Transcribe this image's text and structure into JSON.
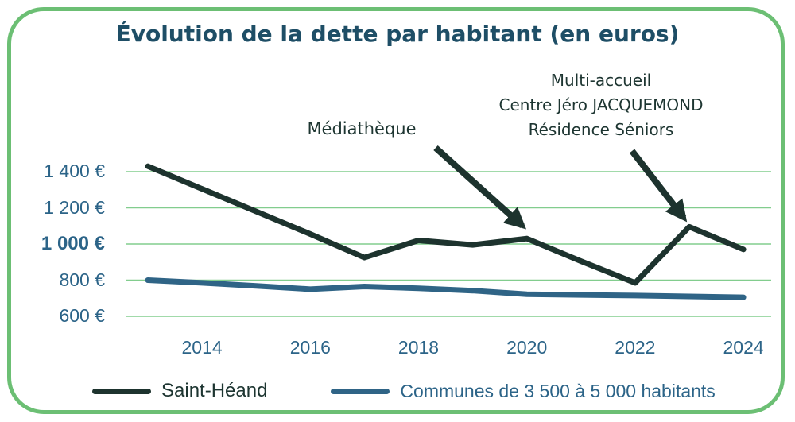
{
  "colors": {
    "frame": "#6cbf74",
    "grid": "#82cd8e",
    "title": "#1e4e66",
    "axis": "#2c6488",
    "ann": "#1d3531",
    "series_dark": "#1d332e",
    "series_blue": "#2f6486"
  },
  "chart_data": {
    "type": "line",
    "title": "Évolution de la dette par habitant (en euros)",
    "xlabel": "",
    "ylabel": "",
    "x": [
      2013,
      2014,
      2015,
      2016,
      2017,
      2018,
      2019,
      2020,
      2021,
      2022,
      2023,
      2024
    ],
    "x_ticks": [
      2014,
      2016,
      2018,
      2020,
      2022,
      2024
    ],
    "y_ticks": [
      {
        "value": 1400,
        "label": "1 400 €",
        "bold": false
      },
      {
        "value": 1200,
        "label": "1 200 €",
        "bold": false
      },
      {
        "value": 1000,
        "label": "1 000 €",
        "bold": true
      },
      {
        "value": 800,
        "label": "800 €",
        "bold": false
      },
      {
        "value": 600,
        "label": "600 €",
        "bold": false
      }
    ],
    "ylim": [
      600,
      1400
    ],
    "grid": true,
    "legend_position": "bottom",
    "series": [
      {
        "name": "Saint-Héand",
        "color": "#1d332e",
        "values": [
          1430,
          1305,
          1180,
          1055,
          925,
          1020,
          995,
          1030,
          905,
          785,
          1095,
          970
        ]
      },
      {
        "name": "Communes de 3 500 à 5 000 habitants",
        "color": "#2f6486",
        "values": [
          800,
          785,
          768,
          750,
          765,
          755,
          742,
          722,
          718,
          715,
          710,
          705
        ]
      }
    ],
    "annotations": [
      {
        "lines": [
          "Médiathèque"
        ],
        "target_year": 2020
      },
      {
        "lines": [
          "Multi-accueil",
          "Centre Jéro JACQUEMOND",
          "Résidence Séniors"
        ],
        "target_year": 2023
      }
    ]
  }
}
